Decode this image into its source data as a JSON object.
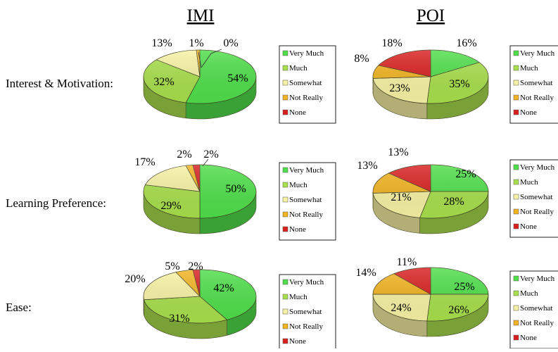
{
  "columns": [
    "IMI",
    "POI"
  ],
  "rows": [
    "Interest & Motivation:",
    "Learning Preference:",
    "Ease:"
  ],
  "legend_labels": [
    "Very Much",
    "Much",
    "Somewhat",
    "Not Really",
    "None"
  ],
  "colors": {
    "very_much": "#4fdf4a",
    "much": "#a8e04c",
    "somewhat": "#f7f2a4",
    "not_really": "#f1b320",
    "none": "#d8201f"
  },
  "chart_data": [
    {
      "type": "pie",
      "column": "IMI",
      "row": "Interest & Motivation:",
      "labels": [
        "Very Much",
        "Much",
        "Somewhat",
        "Not Really",
        "None"
      ],
      "values": [
        54,
        32,
        13,
        1,
        0
      ],
      "value_labels": [
        "54%",
        "32%",
        "13%",
        "1%",
        "0%"
      ]
    },
    {
      "type": "pie",
      "column": "POI",
      "row": "Interest & Motivation:",
      "labels": [
        "Very Much",
        "Much",
        "Somewhat",
        "Not Really",
        "None"
      ],
      "values": [
        16,
        35,
        23,
        8,
        18
      ],
      "value_labels": [
        "16%",
        "35%",
        "23%",
        "8%",
        "18%"
      ]
    },
    {
      "type": "pie",
      "column": "IMI",
      "row": "Learning Preference:",
      "labels": [
        "Very Much",
        "Much",
        "Somewhat",
        "Not Really",
        "None"
      ],
      "values": [
        50,
        29,
        17,
        2,
        2
      ],
      "value_labels": [
        "50%",
        "29%",
        "17%",
        "2%",
        "2%"
      ]
    },
    {
      "type": "pie",
      "column": "POI",
      "row": "Learning Preference:",
      "labels": [
        "Very Much",
        "Much",
        "Somewhat",
        "Not Really",
        "None"
      ],
      "values": [
        25,
        28,
        21,
        13,
        13
      ],
      "value_labels": [
        "25%",
        "28%",
        "21%",
        "13%",
        "13%"
      ]
    },
    {
      "type": "pie",
      "column": "IMI",
      "row": "Ease:",
      "labels": [
        "Very Much",
        "Much",
        "Somewhat",
        "Not Really",
        "None"
      ],
      "values": [
        42,
        31,
        20,
        5,
        2
      ],
      "value_labels": [
        "42%",
        "31%",
        "20%",
        "5%",
        "2%"
      ]
    },
    {
      "type": "pie",
      "column": "POI",
      "row": "Ease:",
      "labels": [
        "Very Much",
        "Much",
        "Somewhat",
        "Not Really",
        "None"
      ],
      "values": [
        25,
        26,
        24,
        14,
        11
      ],
      "value_labels": [
        "25%",
        "26%",
        "24%",
        "14%",
        "11%"
      ]
    }
  ]
}
